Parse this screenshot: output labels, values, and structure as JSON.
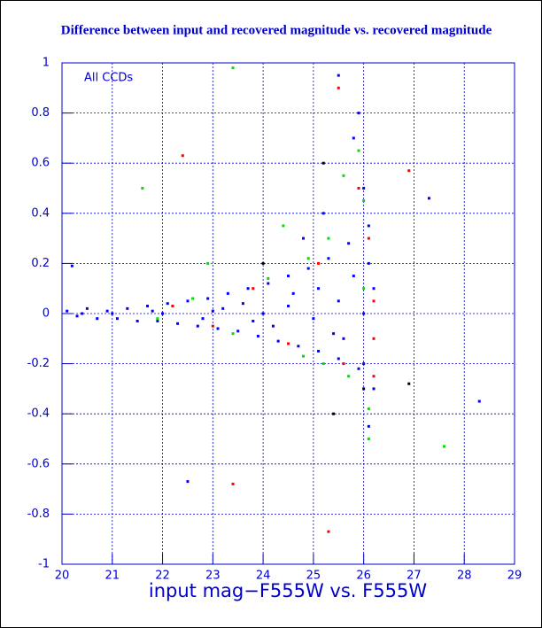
{
  "chart_data": {
    "type": "scatter",
    "title": "Difference between input and recovered magnitude vs. recovered magnitude",
    "x_label": "input mag−F555W vs. F555W",
    "annotation": "All CCDs",
    "xlim": [
      20,
      29
    ],
    "xticks": [
      20,
      21,
      22,
      23,
      24,
      25,
      26,
      27,
      28,
      29
    ],
    "ylim": [
      -1,
      1
    ],
    "yticks": [
      -1,
      -0.8,
      -0.6,
      -0.4,
      -0.2,
      0,
      0.2,
      0.4,
      0.6,
      0.8,
      1
    ],
    "grid": true,
    "series": [
      {
        "color": "#0000ff",
        "x": [
          20.1,
          20.3,
          20.5,
          20.7,
          20.9,
          21.1,
          21.3,
          21.5,
          21.7,
          21.9,
          22.1,
          22.3,
          22.5,
          22.7,
          22.9,
          23.1,
          23.3,
          23.5,
          23.7,
          23.9,
          24.1,
          24.3,
          24.5,
          24.7,
          24.9,
          25.1,
          25.3,
          25.5,
          25.7,
          25.9,
          26.1,
          26.2,
          26.0,
          25.8,
          25.5,
          26.1,
          24.0,
          24.5,
          25.0,
          25.5,
          26.0,
          26.2,
          23.0,
          22.0,
          21.0,
          25.2,
          24.8,
          25.9,
          26.0,
          25.6,
          24.2,
          23.6,
          22.8,
          23.8,
          24.6,
          25.4,
          26.1,
          25.8,
          25.1,
          23.2,
          20.4,
          21.8,
          27.3,
          28.3,
          22.5,
          20.2
        ],
        "values": [
          0.01,
          -0.01,
          0.02,
          -0.02,
          0.01,
          -0.02,
          0.02,
          -0.03,
          0.03,
          -0.03,
          0.04,
          -0.04,
          0.05,
          -0.05,
          0.06,
          -0.06,
          0.08,
          -0.07,
          0.1,
          -0.09,
          0.12,
          -0.11,
          0.15,
          -0.13,
          0.18,
          -0.15,
          0.22,
          -0.18,
          0.28,
          -0.22,
          0.35,
          -0.3,
          0.5,
          0.7,
          0.95,
          -0.45,
          0.0,
          0.03,
          -0.02,
          0.05,
          0.0,
          0.1,
          0.01,
          0.0,
          0.0,
          0.4,
          0.3,
          0.8,
          -0.2,
          -0.1,
          -0.05,
          0.04,
          -0.02,
          -0.03,
          0.08,
          -0.08,
          0.2,
          0.15,
          0.1,
          0.02,
          0.0,
          0.01,
          0.46,
          -0.35,
          -0.67,
          0.19
        ]
      },
      {
        "color": "#00e000",
        "x": [
          21.9,
          22.6,
          23.4,
          24.1,
          24.8,
          25.3,
          25.7,
          26.0,
          26.1,
          25.9,
          25.6,
          26.1,
          27.6,
          23.4,
          24.4,
          24.9,
          25.2,
          21.6,
          22.9,
          26.0
        ],
        "values": [
          -0.02,
          0.06,
          -0.08,
          0.14,
          -0.17,
          0.3,
          -0.25,
          0.45,
          -0.38,
          0.65,
          0.55,
          -0.5,
          -0.53,
          0.98,
          0.35,
          0.22,
          -0.2,
          0.5,
          0.2,
          0.1
        ]
      },
      {
        "color": "#ff0000",
        "x": [
          22.2,
          23.0,
          23.8,
          24.5,
          25.1,
          25.6,
          26.2,
          26.2,
          26.1,
          25.9,
          23.4,
          25.3,
          26.9,
          22.4,
          25.5,
          26.2
        ],
        "values": [
          0.03,
          -0.05,
          0.1,
          -0.12,
          0.2,
          -0.2,
          0.05,
          -0.1,
          0.3,
          0.5,
          -0.68,
          -0.87,
          0.57,
          0.63,
          0.9,
          -0.25
        ]
      },
      {
        "color": "#000000",
        "x": [
          24.0,
          25.2,
          26.0,
          26.9,
          25.4
        ],
        "values": [
          0.2,
          0.6,
          -0.3,
          -0.28,
          -0.4
        ]
      }
    ]
  }
}
